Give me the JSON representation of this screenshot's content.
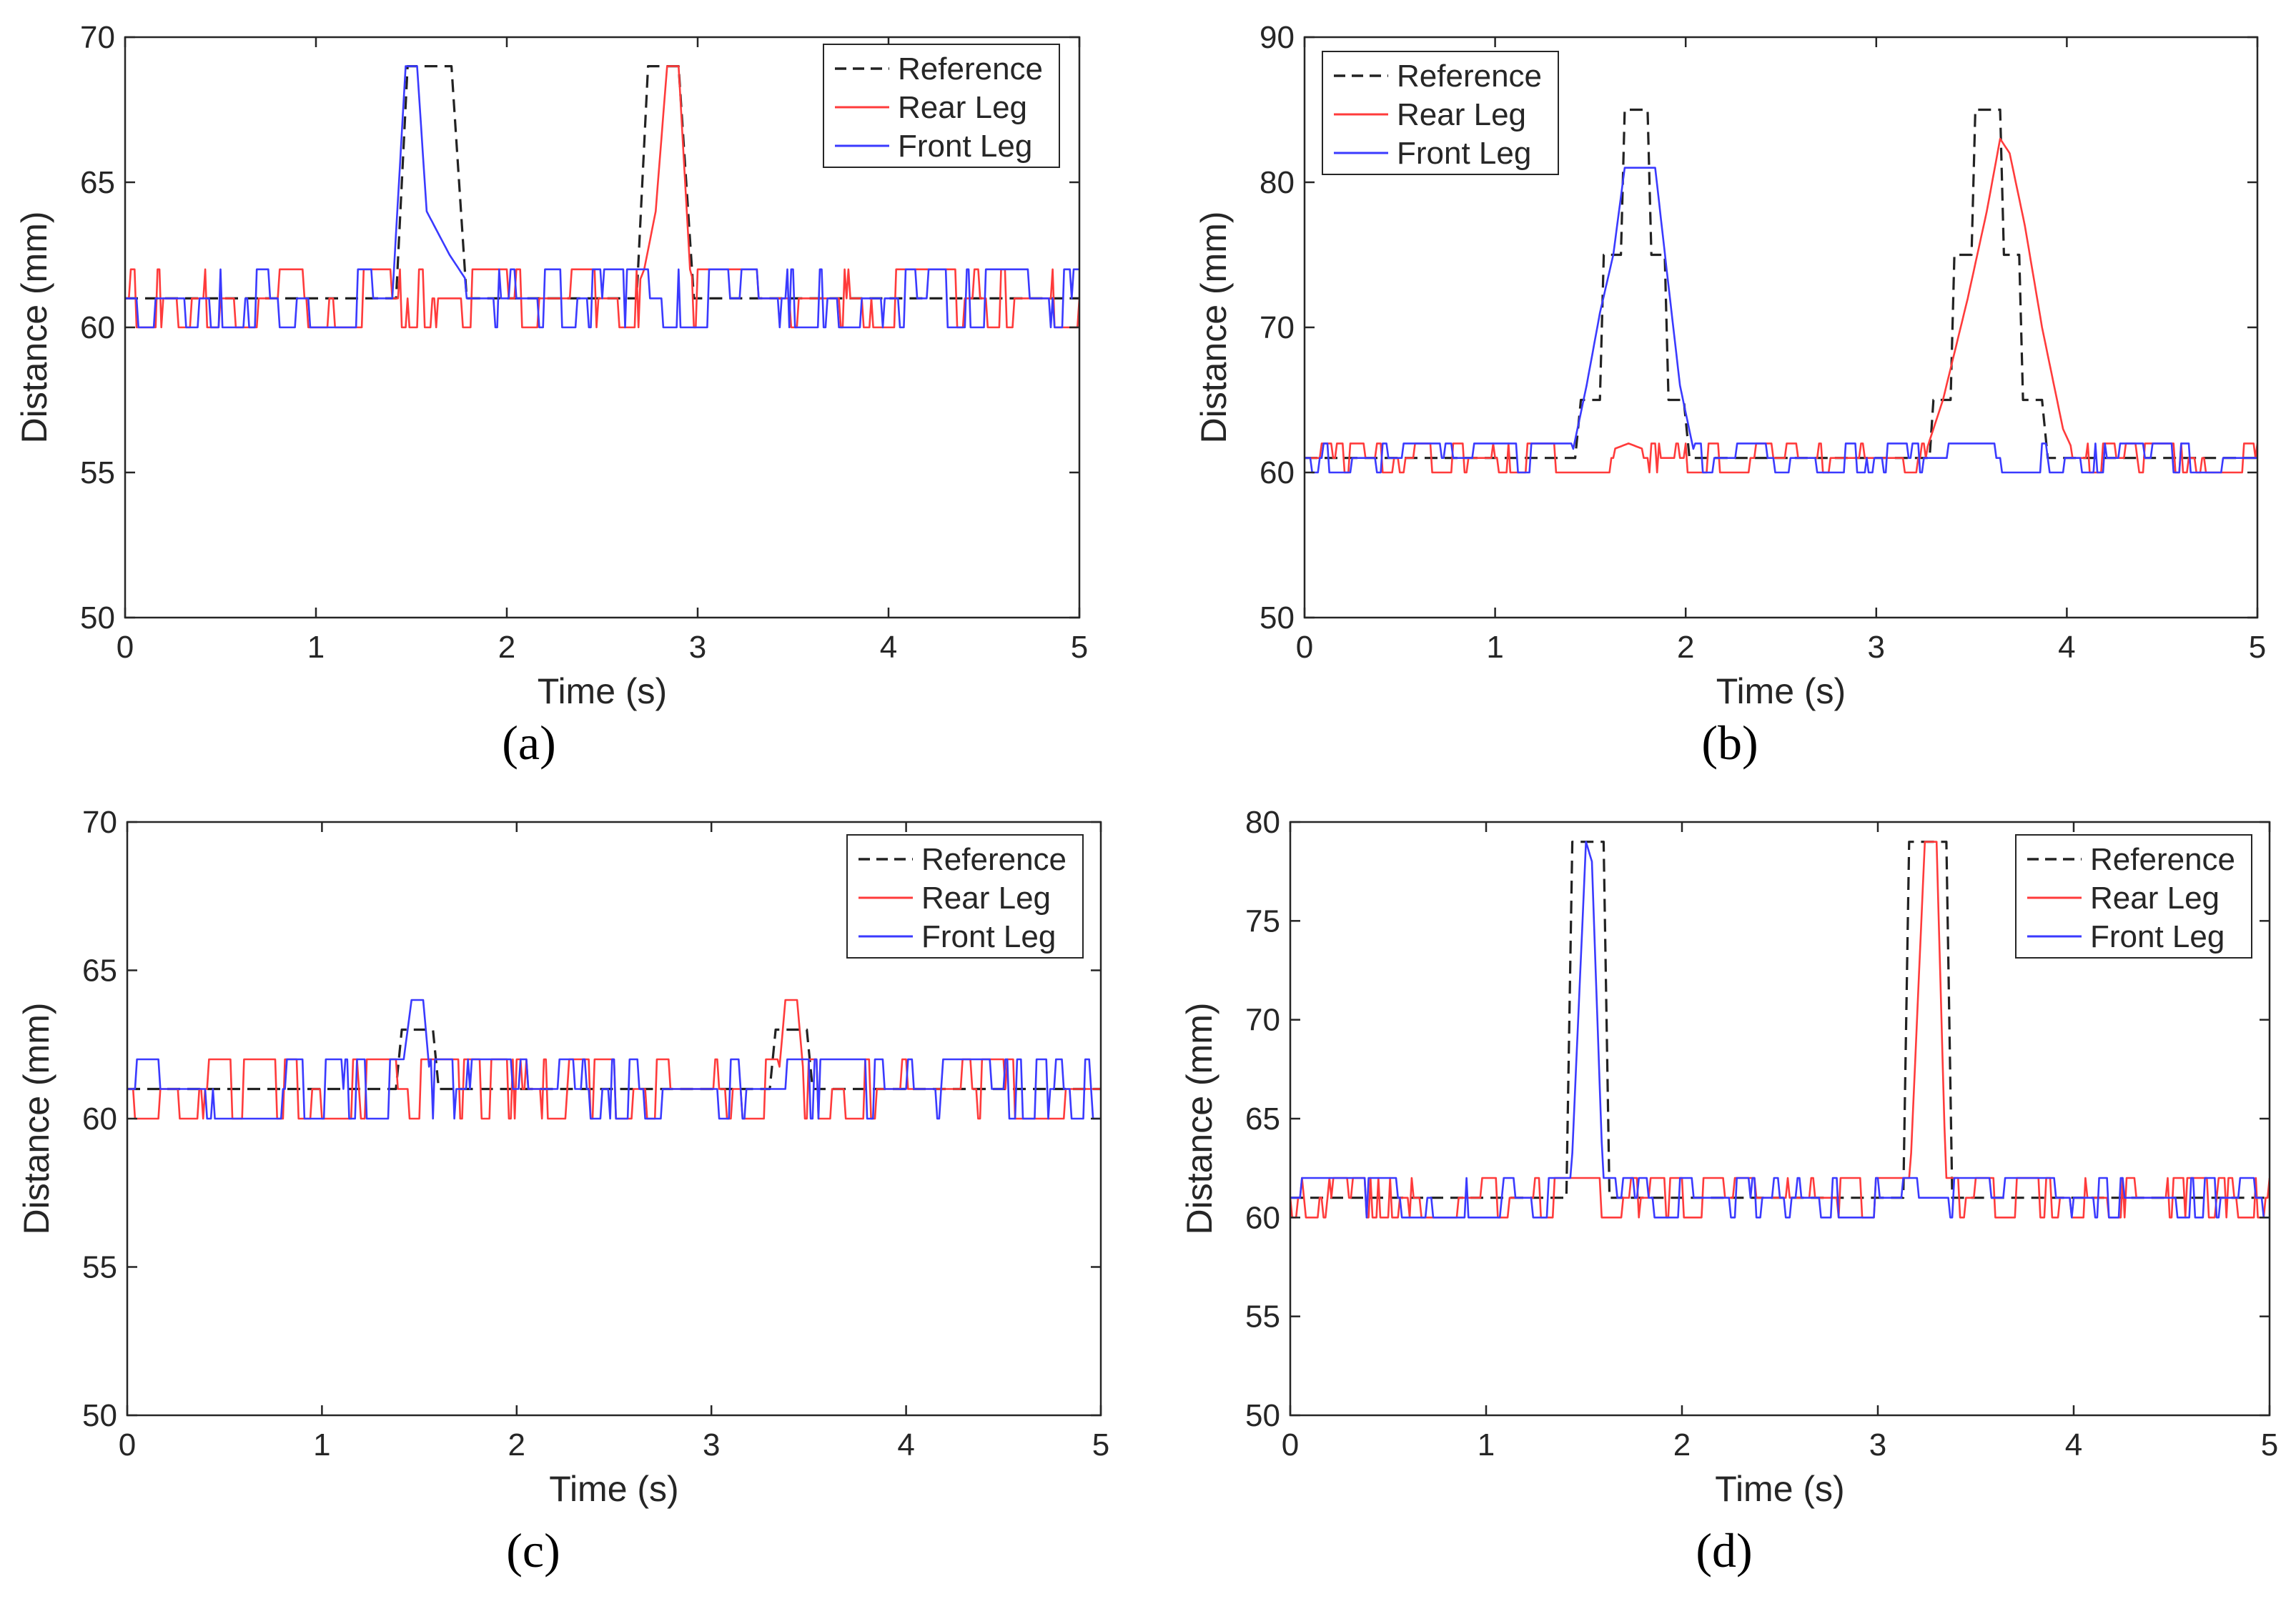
{
  "colors": {
    "reference": "#222222",
    "rear": "#ff3b3b",
    "front": "#3a3aff",
    "axis": "#262626",
    "background": "#ffffff"
  },
  "chart_data": [
    {
      "id": "a",
      "type": "line",
      "caption": "(a)",
      "xlabel": "Time (s)",
      "ylabel": "Distance (mm)",
      "xlim": [
        0,
        5
      ],
      "ylim": [
        50,
        70
      ],
      "xticks": [
        0,
        1,
        2,
        3,
        4,
        5
      ],
      "yticks": [
        50,
        55,
        60,
        65,
        70
      ],
      "legend_position": "top-right",
      "series": [
        {
          "name": "Reference",
          "style": "dashed",
          "color": "#222222",
          "points": [
            [
              0,
              61
            ],
            [
              1.42,
              61
            ],
            [
              1.48,
              69
            ],
            [
              1.71,
              69
            ],
            [
              1.79,
              61
            ],
            [
              2.68,
              61
            ],
            [
              2.74,
              69
            ],
            [
              2.9,
              69
            ],
            [
              2.98,
              61
            ],
            [
              5,
              61
            ]
          ]
        },
        {
          "name": "Rear Leg",
          "style": "solid",
          "color": "#ff3b3b",
          "noise": [
            60,
            62
          ],
          "seed": 11,
          "points": [
            [
              0,
              61
            ],
            [
              2.66,
              61
            ],
            [
              2.72,
              62
            ],
            [
              2.78,
              64
            ],
            [
              2.84,
              69
            ],
            [
              2.9,
              69
            ],
            [
              2.96,
              62
            ],
            [
              3.0,
              61
            ],
            [
              5,
              61
            ]
          ]
        },
        {
          "name": "Front Leg",
          "style": "solid",
          "color": "#3a3aff",
          "noise": [
            60,
            62
          ],
          "seed": 29,
          "points": [
            [
              0,
              61
            ],
            [
              1.4,
              61
            ],
            [
              1.47,
              69
            ],
            [
              1.53,
              69
            ],
            [
              1.58,
              64
            ],
            [
              1.7,
              62.5
            ],
            [
              1.8,
              61.5
            ],
            [
              1.84,
              61
            ],
            [
              5,
              61
            ]
          ]
        }
      ]
    },
    {
      "id": "b",
      "type": "line",
      "caption": "(b)",
      "xlabel": "Time (s)",
      "ylabel": "Distance (mm)",
      "xlim": [
        0,
        5
      ],
      "ylim": [
        50,
        90
      ],
      "xticks": [
        0,
        1,
        2,
        3,
        4,
        5
      ],
      "yticks": [
        50,
        60,
        70,
        80,
        90
      ],
      "legend_position": "top-left",
      "series": [
        {
          "name": "Reference",
          "style": "dashed",
          "color": "#222222",
          "points": [
            [
              0,
              61
            ],
            [
              1.42,
              61
            ],
            [
              1.45,
              65
            ],
            [
              1.55,
              65
            ],
            [
              1.57,
              75
            ],
            [
              1.66,
              75
            ],
            [
              1.68,
              85
            ],
            [
              1.8,
              85
            ],
            [
              1.82,
              75
            ],
            [
              1.89,
              75
            ],
            [
              1.91,
              65
            ],
            [
              1.99,
              65
            ],
            [
              2.02,
              61
            ],
            [
              3.28,
              61
            ],
            [
              3.3,
              65
            ],
            [
              3.39,
              65
            ],
            [
              3.41,
              75
            ],
            [
              3.5,
              75
            ],
            [
              3.52,
              85
            ],
            [
              3.65,
              85
            ],
            [
              3.67,
              75
            ],
            [
              3.75,
              75
            ],
            [
              3.77,
              65
            ],
            [
              3.87,
              65
            ],
            [
              3.9,
              61
            ],
            [
              5,
              61
            ]
          ]
        },
        {
          "name": "Rear Leg",
          "style": "solid",
          "color": "#ff3b3b",
          "noise": [
            60,
            62
          ],
          "seed": 47,
          "points": [
            [
              0,
              61
            ],
            [
              1.5,
              61
            ],
            [
              1.7,
              62
            ],
            [
              1.9,
              61
            ],
            [
              3.25,
              61
            ],
            [
              3.35,
              65
            ],
            [
              3.48,
              72
            ],
            [
              3.58,
              78
            ],
            [
              3.65,
              83
            ],
            [
              3.7,
              82
            ],
            [
              3.78,
              77
            ],
            [
              3.87,
              70
            ],
            [
              3.98,
              63
            ],
            [
              4.05,
              61
            ],
            [
              5,
              61
            ]
          ]
        },
        {
          "name": "Front Leg",
          "style": "solid",
          "color": "#3a3aff",
          "noise": [
            60,
            62
          ],
          "seed": 61,
          "points": [
            [
              0,
              61
            ],
            [
              1.4,
              61
            ],
            [
              1.48,
              66
            ],
            [
              1.55,
              71
            ],
            [
              1.62,
              75
            ],
            [
              1.68,
              81
            ],
            [
              1.84,
              81
            ],
            [
              1.9,
              74
            ],
            [
              1.97,
              66
            ],
            [
              2.05,
              61
            ],
            [
              5,
              61
            ]
          ]
        }
      ]
    },
    {
      "id": "c",
      "type": "line",
      "caption": "(c)",
      "xlabel": "Time (s)",
      "ylabel": "Distance (mm)",
      "xlim": [
        0,
        5
      ],
      "ylim": [
        50,
        70
      ],
      "xticks": [
        0,
        1,
        2,
        3,
        4,
        5
      ],
      "yticks": [
        50,
        55,
        60,
        65,
        70
      ],
      "legend_position": "top-right",
      "series": [
        {
          "name": "Reference",
          "style": "dashed",
          "color": "#222222",
          "points": [
            [
              0,
              61
            ],
            [
              1.38,
              61
            ],
            [
              1.41,
              63
            ],
            [
              1.57,
              63
            ],
            [
              1.6,
              61
            ],
            [
              3.3,
              61
            ],
            [
              3.33,
              63
            ],
            [
              3.49,
              63
            ],
            [
              3.52,
              61
            ],
            [
              5,
              61
            ]
          ]
        },
        {
          "name": "Rear Leg",
          "style": "solid",
          "color": "#ff3b3b",
          "noise": [
            60,
            62
          ],
          "seed": 73,
          "points": [
            [
              0,
              61
            ],
            [
              3.34,
              61
            ],
            [
              3.38,
              64
            ],
            [
              3.44,
              64
            ],
            [
              3.48,
              61
            ],
            [
              5,
              61
            ]
          ]
        },
        {
          "name": "Front Leg",
          "style": "solid",
          "color": "#3a3aff",
          "noise": [
            60,
            62
          ],
          "seed": 89,
          "points": [
            [
              0,
              61
            ],
            [
              1.4,
              61
            ],
            [
              1.46,
              64
            ],
            [
              1.52,
              64
            ],
            [
              1.56,
              61
            ],
            [
              5,
              61
            ]
          ]
        }
      ]
    },
    {
      "id": "d",
      "type": "line",
      "caption": "(d)",
      "xlabel": "Time (s)",
      "ylabel": "Distance (mm)",
      "xlim": [
        0,
        5
      ],
      "ylim": [
        50,
        80
      ],
      "xticks": [
        0,
        1,
        2,
        3,
        4,
        5
      ],
      "yticks": [
        50,
        55,
        60,
        65,
        70,
        75,
        80
      ],
      "legend_position": "top-right",
      "series": [
        {
          "name": "Reference",
          "style": "dashed",
          "color": "#222222",
          "points": [
            [
              0,
              61
            ],
            [
              1.41,
              61
            ],
            [
              1.44,
              79
            ],
            [
              1.6,
              79
            ],
            [
              1.63,
              61
            ],
            [
              3.13,
              61
            ],
            [
              3.16,
              79
            ],
            [
              3.35,
              79
            ],
            [
              3.38,
              61
            ],
            [
              5,
              61
            ]
          ]
        },
        {
          "name": "Rear Leg",
          "style": "solid",
          "color": "#ff3b3b",
          "noise": [
            60,
            62
          ],
          "seed": 97,
          "points": [
            [
              0,
              61
            ],
            [
              3.16,
              61
            ],
            [
              3.24,
              79
            ],
            [
              3.3,
              79
            ],
            [
              3.35,
              61
            ],
            [
              5,
              61
            ]
          ]
        },
        {
          "name": "Front Leg",
          "style": "solid",
          "color": "#3a3aff",
          "noise": [
            60,
            62
          ],
          "seed": 103,
          "points": [
            [
              0,
              61
            ],
            [
              1.43,
              61
            ],
            [
              1.51,
              79
            ],
            [
              1.54,
              78
            ],
            [
              1.6,
              61
            ],
            [
              5,
              61
            ]
          ]
        }
      ]
    }
  ]
}
